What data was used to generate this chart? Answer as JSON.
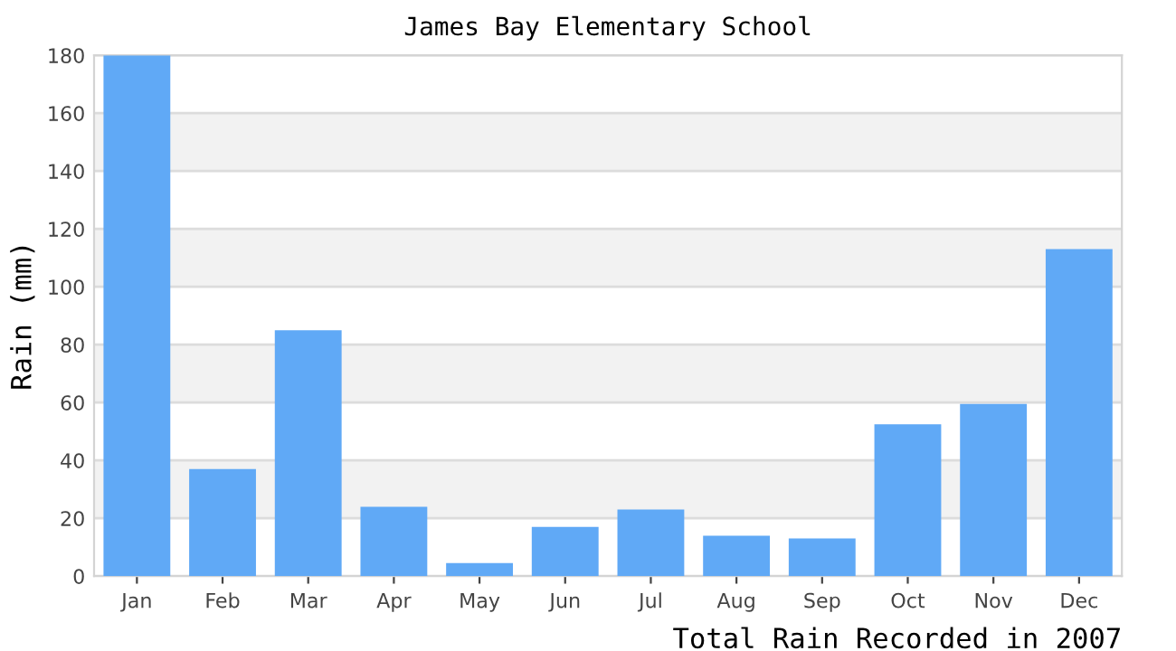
{
  "chart_data": {
    "type": "bar",
    "title": "James Bay Elementary School",
    "xlabel": "Total Rain Recorded in 2007",
    "ylabel": "Rain (mm)",
    "categories": [
      "Jan",
      "Feb",
      "Mar",
      "Apr",
      "May",
      "Jun",
      "Jul",
      "Aug",
      "Sep",
      "Oct",
      "Nov",
      "Dec"
    ],
    "values": [
      180,
      37,
      85,
      24,
      4.5,
      17,
      23,
      14,
      13,
      52.5,
      59.5,
      113
    ],
    "color": "#60a9f6",
    "ylim": [
      0,
      180
    ],
    "yticks": [
      0,
      20,
      40,
      60,
      80,
      100,
      120,
      140,
      160,
      180
    ],
    "grid": "y"
  }
}
